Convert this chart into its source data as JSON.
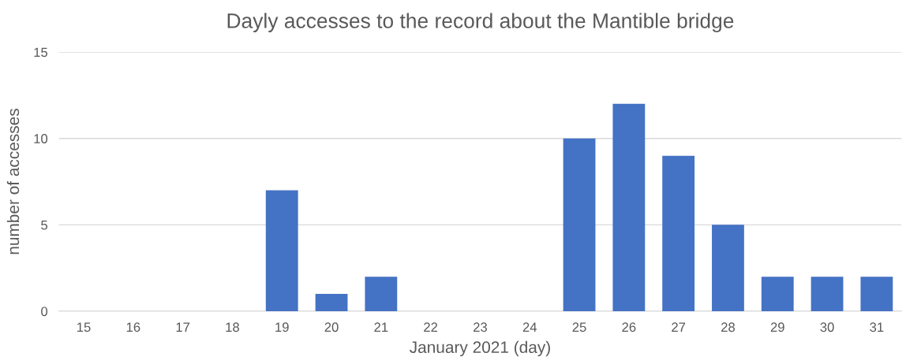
{
  "chart_data": {
    "type": "bar",
    "title": "Dayly accesses to the record about the Mantible bridge",
    "xlabel": "January 2021 (day)",
    "ylabel": "number of accesses",
    "categories": [
      "15",
      "16",
      "17",
      "18",
      "19",
      "20",
      "21",
      "22",
      "23",
      "24",
      "25",
      "26",
      "27",
      "28",
      "29",
      "30",
      "31"
    ],
    "values": [
      0,
      0,
      0,
      0,
      7,
      1,
      2,
      0,
      0,
      0,
      10,
      12,
      9,
      5,
      2,
      2,
      2
    ],
    "color": "#4472c4",
    "ylim": [
      0,
      15
    ],
    "yticks": [
      0,
      5,
      10,
      15
    ],
    "grid": "y"
  }
}
